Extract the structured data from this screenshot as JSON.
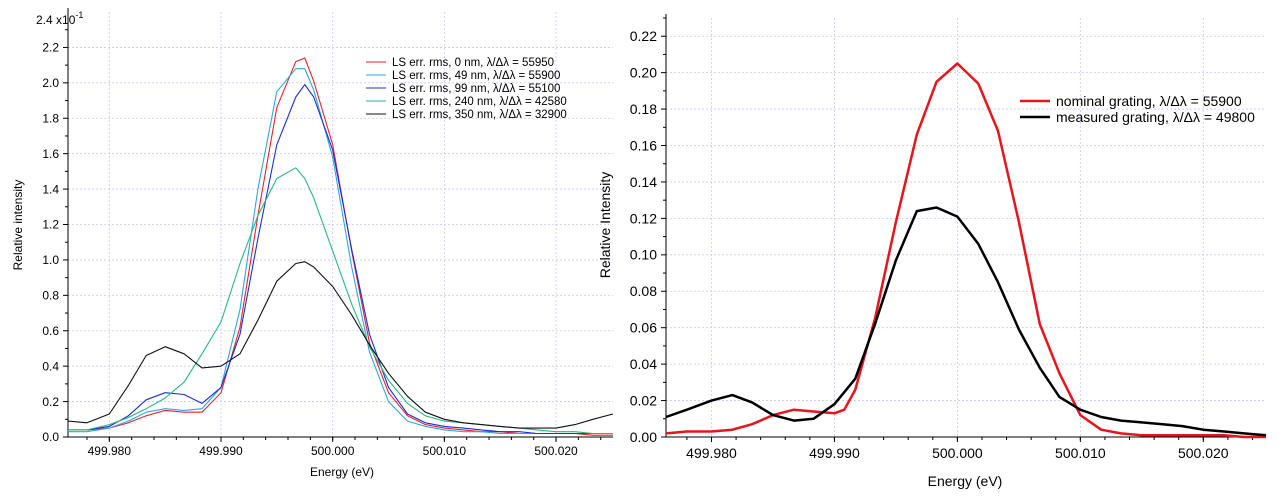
{
  "chart_data": [
    {
      "type": "line",
      "xlabel": "Energy (eV)",
      "ylabel": "Relative intensity",
      "y_multiplier_label": "2.4 x10",
      "y_multiplier_exp": "-1",
      "xlim": [
        499.9763,
        500.0251
      ],
      "ylim": [
        0,
        2.4
      ],
      "xticks": [
        499.98,
        499.99,
        500.0,
        500.01,
        500.02
      ],
      "xtick_labels": [
        "499.980",
        "499.990",
        "500.000",
        "500.010",
        "500.020"
      ],
      "yticks": [
        0.0,
        0.2,
        0.4,
        0.6,
        0.8,
        1.0,
        1.2,
        1.4,
        1.6,
        1.8,
        2.0,
        2.2
      ],
      "ytick_labels": [
        "0.0",
        "0.2",
        "0.4",
        "0.6",
        "0.8",
        "1.0",
        "1.2",
        "1.4",
        "1.6",
        "1.8",
        "2.0",
        "2.2"
      ],
      "grid": true,
      "legend_position": "top-right",
      "series": [
        {
          "name": "LS err. rms, 0 nm, λ/Δλ = 55950",
          "color": "#e8222a",
          "x": [
            499.9763,
            499.978,
            499.98,
            499.9817,
            499.9833,
            499.985,
            499.9867,
            499.9883,
            499.99,
            499.9917,
            499.9933,
            499.995,
            499.9967,
            499.9975,
            499.9983,
            500.0,
            500.0017,
            500.0033,
            500.005,
            500.0067,
            500.0083,
            500.01,
            500.0117,
            500.0133,
            500.015,
            500.0167,
            500.0183,
            500.02,
            500.0217,
            500.0233,
            500.0251
          ],
          "values": [
            0.04,
            0.04,
            0.05,
            0.08,
            0.12,
            0.15,
            0.14,
            0.14,
            0.25,
            0.62,
            1.25,
            1.86,
            2.12,
            2.14,
            2.01,
            1.65,
            1.05,
            0.53,
            0.25,
            0.12,
            0.07,
            0.05,
            0.04,
            0.03,
            0.03,
            0.02,
            0.02,
            0.02,
            0.02,
            0.01,
            0.01
          ]
        },
        {
          "name": "LS err. rms, 49 nm, λ/Δλ = 55900",
          "color": "#2aa8e0",
          "x": [
            499.9763,
            499.978,
            499.98,
            499.9817,
            499.9833,
            499.985,
            499.9867,
            499.9883,
            499.99,
            499.9917,
            499.9933,
            499.995,
            499.9967,
            499.9975,
            499.9983,
            500.0,
            500.0017,
            500.0033,
            500.005,
            500.0067,
            500.0083,
            500.01,
            500.0117,
            500.0133,
            500.015,
            500.0167,
            500.0183,
            500.02,
            500.0217,
            500.0233,
            500.0251
          ],
          "values": [
            0.03,
            0.03,
            0.05,
            0.09,
            0.14,
            0.16,
            0.15,
            0.16,
            0.28,
            0.72,
            1.4,
            1.95,
            2.08,
            2.08,
            1.96,
            1.58,
            0.96,
            0.48,
            0.2,
            0.09,
            0.06,
            0.04,
            0.03,
            0.03,
            0.02,
            0.02,
            0.02,
            0.02,
            0.02,
            0.02,
            0.02
          ]
        },
        {
          "name": "LS err. rms, 99 nm, λ/Δλ = 55100",
          "color": "#1a2fd6",
          "x": [
            499.9763,
            499.978,
            499.98,
            499.9817,
            499.9833,
            499.985,
            499.9867,
            499.9883,
            499.99,
            499.9917,
            499.9933,
            499.995,
            499.9967,
            499.9975,
            499.9983,
            500.0,
            500.0017,
            500.0033,
            500.005,
            500.0067,
            500.0083,
            500.01,
            500.0117,
            500.0133,
            500.015,
            500.0167,
            500.0183,
            500.02,
            500.0217,
            500.0233,
            500.0251
          ],
          "values": [
            0.04,
            0.04,
            0.06,
            0.12,
            0.21,
            0.25,
            0.24,
            0.19,
            0.28,
            0.58,
            1.12,
            1.65,
            1.92,
            1.99,
            1.92,
            1.62,
            1.06,
            0.58,
            0.28,
            0.13,
            0.08,
            0.06,
            0.05,
            0.04,
            0.03,
            0.03,
            0.02,
            0.02,
            0.02,
            0.02,
            0.02
          ]
        },
        {
          "name": "LS err. rms, 240 nm, λ/Δλ = 42580",
          "color": "#28b884",
          "x": [
            499.9763,
            499.978,
            499.98,
            499.9817,
            499.9833,
            499.985,
            499.9867,
            499.9883,
            499.99,
            499.9917,
            499.9933,
            499.995,
            499.9967,
            499.9975,
            499.9983,
            500.0,
            500.0017,
            500.0033,
            500.005,
            500.0067,
            500.0083,
            500.01,
            500.0117,
            500.0133,
            500.015,
            500.0167,
            500.0183,
            500.02,
            500.0217,
            500.0233,
            500.0251
          ],
          "values": [
            0.04,
            0.04,
            0.07,
            0.11,
            0.16,
            0.22,
            0.31,
            0.47,
            0.65,
            0.98,
            1.25,
            1.46,
            1.52,
            1.46,
            1.35,
            1.05,
            0.75,
            0.51,
            0.32,
            0.19,
            0.12,
            0.09,
            0.08,
            0.07,
            0.06,
            0.05,
            0.04,
            0.03,
            0.03,
            0.02,
            0.02
          ]
        },
        {
          "name": "LS err. rms, 350 nm, λ/Δλ = 32900",
          "color": "#111111",
          "x": [
            499.9763,
            499.978,
            499.98,
            499.9817,
            499.9833,
            499.985,
            499.9867,
            499.9883,
            499.99,
            499.9917,
            499.9933,
            499.995,
            499.9967,
            499.9975,
            499.9983,
            500.0,
            500.0017,
            500.0033,
            500.005,
            500.0067,
            500.0083,
            500.01,
            500.0117,
            500.0133,
            500.015,
            500.0167,
            500.0183,
            500.02,
            500.0217,
            500.0233,
            500.0251
          ],
          "values": [
            0.09,
            0.08,
            0.13,
            0.29,
            0.46,
            0.51,
            0.47,
            0.39,
            0.4,
            0.47,
            0.66,
            0.88,
            0.98,
            0.99,
            0.96,
            0.85,
            0.69,
            0.52,
            0.36,
            0.23,
            0.14,
            0.1,
            0.08,
            0.07,
            0.06,
            0.05,
            0.05,
            0.05,
            0.07,
            0.1,
            0.13
          ]
        }
      ]
    },
    {
      "type": "line",
      "xlabel": "Energy (eV)",
      "ylabel": "Relative Intensity",
      "xlim": [
        499.9763,
        500.0251
      ],
      "ylim": [
        0,
        0.23
      ],
      "xticks": [
        499.98,
        499.99,
        500.0,
        500.01,
        500.02
      ],
      "xtick_labels": [
        "499.980",
        "499.990",
        "500.000",
        "500.010",
        "500.020"
      ],
      "yticks": [
        0.0,
        0.02,
        0.04,
        0.06,
        0.08,
        0.1,
        0.12,
        0.14,
        0.16,
        0.18,
        0.2,
        0.22
      ],
      "ytick_labels": [
        "0.00",
        "0.02",
        "0.04",
        "0.06",
        "0.08",
        "0.10",
        "0.12",
        "0.14",
        "0.16",
        "0.18",
        "0.20",
        "0.22"
      ],
      "grid": true,
      "legend_position": "top-right",
      "series": [
        {
          "name": "nominal grating, λ/Δλ = 55900",
          "color": "#e8141c",
          "x": [
            499.9763,
            499.978,
            499.98,
            499.9817,
            499.9833,
            499.985,
            499.9867,
            499.9883,
            499.99,
            499.9908,
            499.9917,
            499.9933,
            499.995,
            499.9967,
            499.9983,
            500.0,
            500.0017,
            500.0033,
            500.005,
            500.0067,
            500.0083,
            500.01,
            500.0117,
            500.0133,
            500.015,
            500.0167,
            500.0183,
            500.02,
            500.0217,
            500.0233,
            500.0251
          ],
          "values": [
            0.002,
            0.003,
            0.003,
            0.004,
            0.007,
            0.012,
            0.015,
            0.014,
            0.013,
            0.015,
            0.026,
            0.065,
            0.118,
            0.166,
            0.195,
            0.205,
            0.194,
            0.168,
            0.118,
            0.062,
            0.035,
            0.012,
            0.004,
            0.002,
            0.001,
            0.001,
            0.001,
            0.001,
            0.001,
            0.0,
            0.0
          ]
        },
        {
          "name": "measured grating, λ/Δλ = 49800",
          "color": "#000000",
          "x": [
            499.9763,
            499.978,
            499.98,
            499.9817,
            499.9833,
            499.985,
            499.9867,
            499.9883,
            499.99,
            499.9917,
            499.9933,
            499.995,
            499.9967,
            499.9983,
            500.0,
            500.0017,
            500.0033,
            500.005,
            500.0067,
            500.0083,
            500.01,
            500.0117,
            500.0133,
            500.015,
            500.0167,
            500.0183,
            500.02,
            500.0217,
            500.0233,
            500.0251
          ],
          "values": [
            0.011,
            0.015,
            0.02,
            0.023,
            0.019,
            0.012,
            0.009,
            0.01,
            0.018,
            0.032,
            0.062,
            0.097,
            0.124,
            0.126,
            0.121,
            0.106,
            0.085,
            0.059,
            0.038,
            0.022,
            0.015,
            0.011,
            0.009,
            0.008,
            0.007,
            0.006,
            0.004,
            0.003,
            0.002,
            0.001
          ]
        }
      ]
    }
  ]
}
